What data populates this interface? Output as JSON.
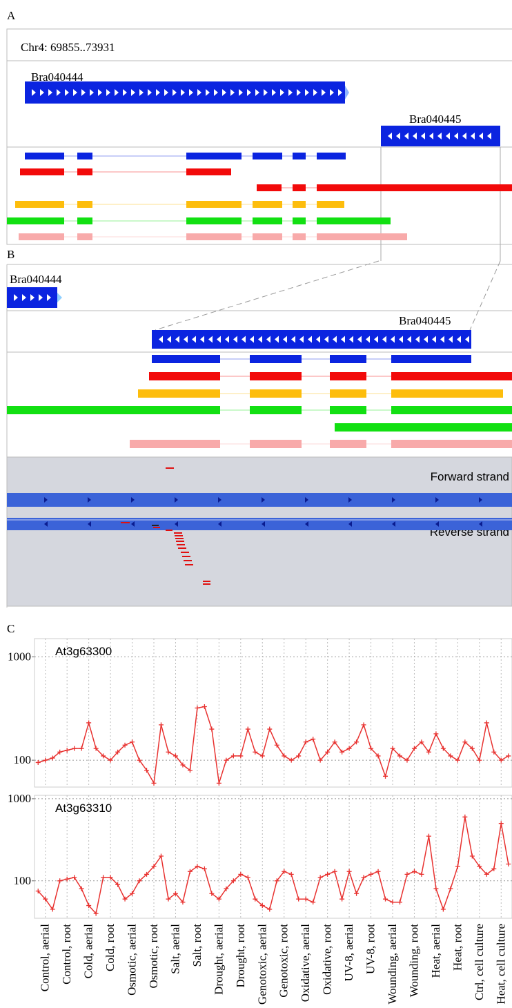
{
  "panels": {
    "A": {
      "label": "A",
      "location": "Chr4: 69855..73931",
      "genes": [
        "Bra040444",
        "Bra040445"
      ]
    },
    "B": {
      "label": "B",
      "genes": [
        "Bra040444",
        "Bra040445"
      ],
      "forward_strand": "Forward strand",
      "reverse_strand": "Reverse strand"
    },
    "C": {
      "label": "C"
    }
  },
  "chart_data": [
    {
      "type": "line",
      "title": "At3g63300",
      "x": [
        0,
        1,
        2,
        3,
        4,
        5,
        6,
        7,
        8,
        9,
        10,
        11,
        12,
        13,
        14,
        15,
        16,
        17,
        18,
        19,
        20,
        21,
        22,
        23,
        24,
        25,
        26,
        27,
        28,
        29,
        30,
        31,
        32,
        33,
        34,
        35,
        36,
        37,
        38,
        39,
        40,
        41,
        42,
        43,
        44,
        45,
        46,
        47,
        48,
        49,
        50,
        51,
        52,
        53,
        54,
        55,
        56,
        57,
        58,
        59,
        60,
        61,
        62,
        63,
        64,
        65
      ],
      "series": [
        {
          "color": "#e8312f",
          "values": [
            95,
            100,
            105,
            120,
            125,
            130,
            130,
            230,
            130,
            110,
            100,
            120,
            140,
            150,
            100,
            80,
            60,
            220,
            120,
            110,
            90,
            80,
            320,
            330,
            200,
            60,
            100,
            110,
            110,
            200,
            120,
            110,
            200,
            140,
            110,
            100,
            110,
            150,
            160,
            100,
            120,
            150,
            120,
            130,
            150,
            220,
            130,
            110,
            70,
            130,
            110,
            100,
            130,
            150,
            120,
            180,
            130,
            110,
            100,
            150,
            130,
            100,
            230,
            120,
            100,
            110
          ]
        }
      ],
      "xlim": [
        -0.5,
        65.5
      ],
      "xticks": [
        1,
        4,
        7,
        10,
        13,
        16,
        19,
        22,
        25,
        28,
        31,
        34,
        37,
        40,
        43,
        46,
        49,
        52,
        55,
        58,
        61,
        64
      ],
      "xtick_labels": false,
      "ylim": [
        55,
        1500
      ],
      "yticks": [
        100,
        1000
      ],
      "log": true,
      "grid": true
    },
    {
      "type": "line",
      "title": "At3g63310",
      "x": [
        0,
        1,
        2,
        3,
        4,
        5,
        6,
        7,
        8,
        9,
        10,
        11,
        12,
        13,
        14,
        15,
        16,
        17,
        18,
        19,
        20,
        21,
        22,
        23,
        24,
        25,
        26,
        27,
        28,
        29,
        30,
        31,
        32,
        33,
        34,
        35,
        36,
        37,
        38,
        39,
        40,
        41,
        42,
        43,
        44,
        45,
        46,
        47,
        48,
        49,
        50,
        51,
        52,
        53,
        54,
        55,
        56,
        57,
        58,
        59,
        60,
        61,
        62,
        63,
        64,
        65
      ],
      "series": [
        {
          "color": "#e8312f",
          "values": [
            75,
            60,
            45,
            100,
            105,
            110,
            80,
            50,
            40,
            110,
            110,
            90,
            60,
            70,
            100,
            120,
            150,
            200,
            60,
            70,
            55,
            130,
            150,
            140,
            70,
            60,
            80,
            100,
            120,
            110,
            60,
            50,
            45,
            100,
            130,
            120,
            60,
            60,
            55,
            110,
            120,
            130,
            60,
            130,
            70,
            110,
            120,
            130,
            60,
            55,
            55,
            120,
            130,
            120,
            350,
            80,
            45,
            80,
            150,
            600,
            200,
            150,
            120,
            140,
            500,
            160
          ]
        }
      ],
      "xlim": [
        -0.5,
        65.5
      ],
      "xticks": [
        {
          "value": 1,
          "label": "Control, aerial"
        },
        {
          "value": 4,
          "label": "Control, root"
        },
        {
          "value": 7,
          "label": "Cold, aerial"
        },
        {
          "value": 10,
          "label": "Cold, root"
        },
        {
          "value": 13,
          "label": "Osmotic, aerial"
        },
        {
          "value": 16,
          "label": "Osmotic, root"
        },
        {
          "value": 19,
          "label": "Salt, aerial"
        },
        {
          "value": 22,
          "label": "Salt, root"
        },
        {
          "value": 25,
          "label": "Drought, aerial"
        },
        {
          "value": 28,
          "label": "Drought, root"
        },
        {
          "value": 31,
          "label": "Genotoxic, aerial"
        },
        {
          "value": 34,
          "label": "Genotoxic, root"
        },
        {
          "value": 37,
          "label": "Oxidative, aerial"
        },
        {
          "value": 40,
          "label": "Oxidative, root"
        },
        {
          "value": 43,
          "label": "UV-8, aerial"
        },
        {
          "value": 46,
          "label": "UV-8, root"
        },
        {
          "value": 49,
          "label": "Wounding, aerial"
        },
        {
          "value": 52,
          "label": "Wounding, root"
        },
        {
          "value": 55,
          "label": "Heat, aerial"
        },
        {
          "value": 58,
          "label": "Heat, root"
        },
        {
          "value": 61,
          "label": "Ctrl, cell culture"
        },
        {
          "value": 64,
          "label": "Heat, cell culture"
        }
      ],
      "xtick_labels": true,
      "ylim": [
        35,
        1100
      ],
      "yticks": [
        100,
        1000
      ],
      "log": true,
      "grid": true
    }
  ]
}
